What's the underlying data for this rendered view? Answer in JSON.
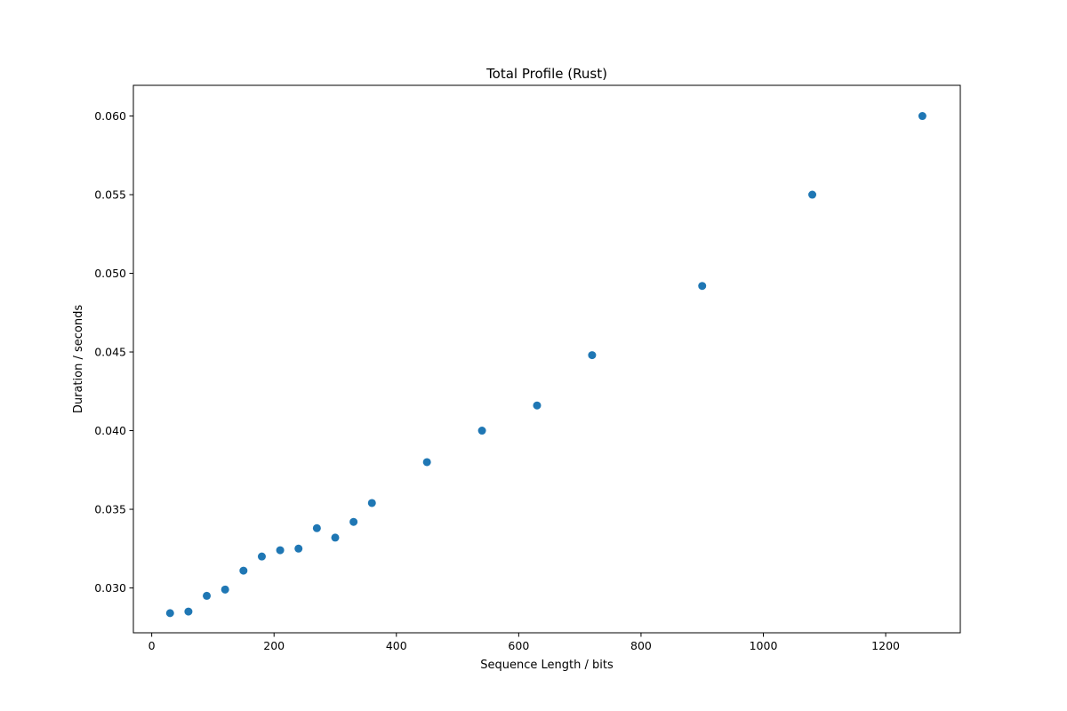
{
  "chart_data": {
    "type": "scatter",
    "title": "Total Profile (Rust)",
    "xlabel": "Sequence Length / bits",
    "ylabel": "Duration / seconds",
    "xlim": [
      -30,
      1322
    ],
    "ylim": [
      0.02715,
      0.06195
    ],
    "xticks": [
      0,
      200,
      400,
      600,
      800,
      1000,
      1200
    ],
    "yticks": [
      0.03,
      0.035,
      0.04,
      0.045,
      0.05,
      0.055,
      0.06
    ],
    "xtick_labels": [
      "0",
      "200",
      "400",
      "600",
      "800",
      "1000",
      "1200"
    ],
    "ytick_labels": [
      "0.030",
      "0.035",
      "0.040",
      "0.045",
      "0.050",
      "0.055",
      "0.060"
    ],
    "grid": false,
    "marker_color": "#1f77b4",
    "series": [
      {
        "x": [
          30,
          60,
          90,
          120,
          150,
          180,
          210,
          240,
          270,
          300,
          330,
          360,
          450,
          540,
          630,
          720,
          900,
          1080,
          1260
        ],
        "y": [
          0.0284,
          0.0285,
          0.0295,
          0.0299,
          0.0311,
          0.032,
          0.0324,
          0.0325,
          0.0338,
          0.0332,
          0.0342,
          0.0354,
          0.038,
          0.04,
          0.0416,
          0.0448,
          0.0492,
          0.055,
          0.06
        ]
      }
    ]
  }
}
